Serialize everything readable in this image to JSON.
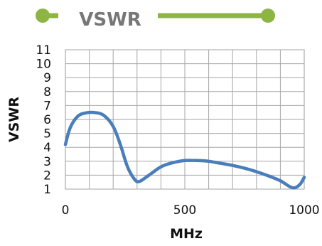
{
  "banner": {
    "title": "VSWR",
    "color": "#8DB544"
  },
  "chart_data": {
    "type": "line",
    "title": "VSWR",
    "xlabel": "MHz",
    "ylabel": "VSWR",
    "xlim": [
      0,
      1000
    ],
    "ylim": [
      1,
      11
    ],
    "xticks": [
      0,
      500,
      1000
    ],
    "yticks": [
      1,
      2,
      3,
      4,
      5,
      6,
      7,
      8,
      9,
      10,
      11
    ],
    "grid": true,
    "line_color": "#4A7EBB",
    "series": [
      {
        "x": [
          0,
          20,
          50,
          80,
          120,
          160,
          200,
          230,
          260,
          290,
          310,
          350,
          400,
          450,
          500,
          550,
          600,
          650,
          700,
          750,
          800,
          850,
          900,
          950,
          980,
          1000
        ],
        "values": [
          4.2,
          5.4,
          6.2,
          6.45,
          6.5,
          6.3,
          5.5,
          4.2,
          2.6,
          1.7,
          1.55,
          2.0,
          2.6,
          2.9,
          3.05,
          3.05,
          3.0,
          2.85,
          2.7,
          2.5,
          2.25,
          1.95,
          1.6,
          1.1,
          1.3,
          1.85
        ]
      }
    ]
  }
}
